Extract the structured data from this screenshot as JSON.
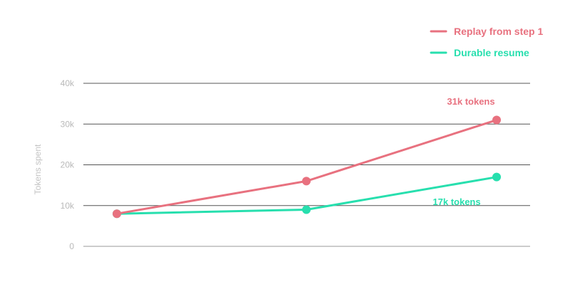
{
  "chart_data": {
    "type": "line",
    "title": "",
    "xlabel": "",
    "ylabel": "Tokens spent",
    "ylim": [
      0,
      40000
    ],
    "y_ticks": [
      {
        "value": 0,
        "label": "0"
      },
      {
        "value": 10000,
        "label": "10k"
      },
      {
        "value": 20000,
        "label": "20k"
      },
      {
        "value": 30000,
        "label": "30k"
      },
      {
        "value": 40000,
        "label": "40k"
      }
    ],
    "x": [
      1,
      2,
      3
    ],
    "grid": "horizontal",
    "legend_position": "top-right",
    "series": [
      {
        "name": "Replay from step 1",
        "color": "#e8717f",
        "values": [
          8000,
          16000,
          31000
        ],
        "end_label": "31k tokens"
      },
      {
        "name": "Durable resume",
        "color": "#27dfae",
        "values": [
          8000,
          9000,
          17000
        ],
        "end_label": "17k tokens"
      }
    ]
  }
}
